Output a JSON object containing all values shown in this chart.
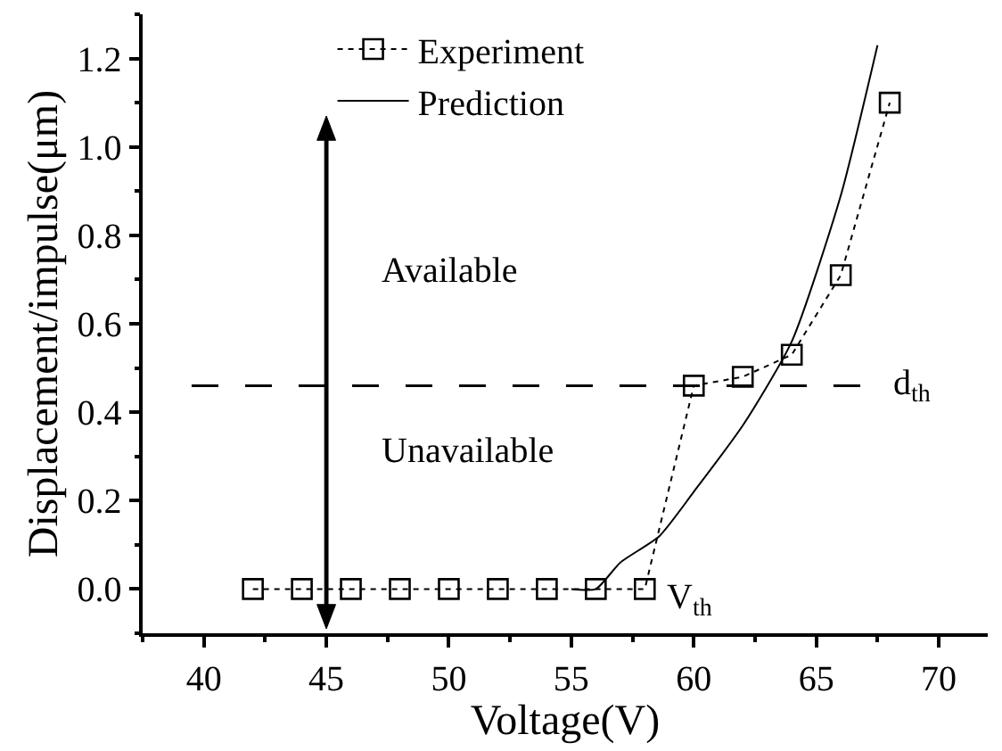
{
  "chart_data": {
    "type": "line",
    "xlabel": "Voltage(V)",
    "ylabel": "Displacement/impulse(μm)",
    "xlim": [
      37.5,
      72
    ],
    "xticks": [
      40,
      45,
      50,
      55,
      60,
      65,
      70
    ],
    "ylim": [
      -0.1,
      1.3
    ],
    "yticks": [
      {
        "value": 0,
        "label": "0.0"
      },
      0.2,
      0.4,
      0.6,
      0.8,
      {
        "value": 1,
        "label": "1.0"
      },
      1.2
    ],
    "series": [
      {
        "name": "Experiment",
        "color": "#000000",
        "marker": "square",
        "line_style": "dotted",
        "x": [
          42,
          44,
          46,
          48,
          50,
          52,
          54,
          56,
          58,
          60,
          62,
          64,
          66,
          68
        ],
        "values": [
          0,
          0,
          0,
          0,
          0,
          0,
          0,
          0,
          0,
          0.46,
          0.48,
          0.53,
          0.71,
          1.1
        ]
      },
      {
        "name": "Prediction",
        "color": "#000000",
        "marker": "none",
        "line_style": "solid",
        "x": [
          55,
          56,
          57,
          58.6,
          60,
          62,
          64,
          66,
          67.5
        ],
        "values": [
          0,
          0,
          0.06,
          0.12,
          0.22,
          0.37,
          0.56,
          0.89,
          1.23
        ]
      }
    ],
    "ref_lines": [
      {
        "axis": "y",
        "value": 0.46,
        "label": "d$_{th}$",
        "line_style": "dashed",
        "color": "#000000"
      }
    ],
    "annotations": [
      "Available",
      "Unavailable",
      {
        "text": "V$_{th}$",
        "x": 58,
        "y": 0
      }
    ],
    "legend": "top"
  }
}
